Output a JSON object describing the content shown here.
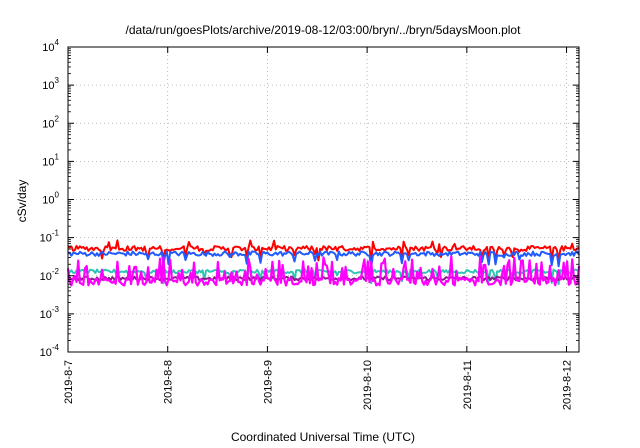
{
  "chart_data": {
    "type": "line",
    "title": "/data/run/goesPlots/archive/2019-08-12/03:00/bryn/../bryn/5daysMoon.plot",
    "xlabel": "Coordinated Universal Time (UTC)",
    "ylabel": "cSv/day",
    "y_scale": "log",
    "ylim": [
      0.0001,
      10000
    ],
    "y_ticks": [
      {
        "base": "10",
        "exp": "-4",
        "value": 0.0001
      },
      {
        "base": "10",
        "exp": "-3",
        "value": 0.001
      },
      {
        "base": "10",
        "exp": "-2",
        "value": 0.01
      },
      {
        "base": "10",
        "exp": "-1",
        "value": 0.1
      },
      {
        "base": "10",
        "exp": "0",
        "value": 1
      },
      {
        "base": "10",
        "exp": "1",
        "value": 10
      },
      {
        "base": "10",
        "exp": "2",
        "value": 100
      },
      {
        "base": "10",
        "exp": "3",
        "value": 1000
      },
      {
        "base": "10",
        "exp": "4",
        "value": 10000
      }
    ],
    "xlim": [
      "2019-08-07",
      "2019-08-12T03:00"
    ],
    "x_ticks": [
      "2019-8-7",
      "2019-8-8",
      "2019-8-9",
      "2019-8-10",
      "2019-8-11",
      "2019-8-12"
    ],
    "grid": true,
    "legend": "none",
    "series": [
      {
        "color": "#ff0000",
        "base": 0.052,
        "spread": 0.13,
        "dips": 0.05,
        "mean_note": "top"
      },
      {
        "color": "#1f5bff",
        "base": 0.038,
        "spread": 0.12,
        "dips": 0.1
      },
      {
        "color": "#2ec4b6",
        "base": 0.013,
        "spread": 0.1,
        "dips": 0.1
      },
      {
        "color": "#8b1a8b",
        "base": 0.0085,
        "spread": 0.1,
        "dips": 0.0
      },
      {
        "color": "#ff00ff",
        "base": 0.007,
        "spread": 0.2,
        "dips": 0.0,
        "spikes": 0.3
      }
    ]
  }
}
